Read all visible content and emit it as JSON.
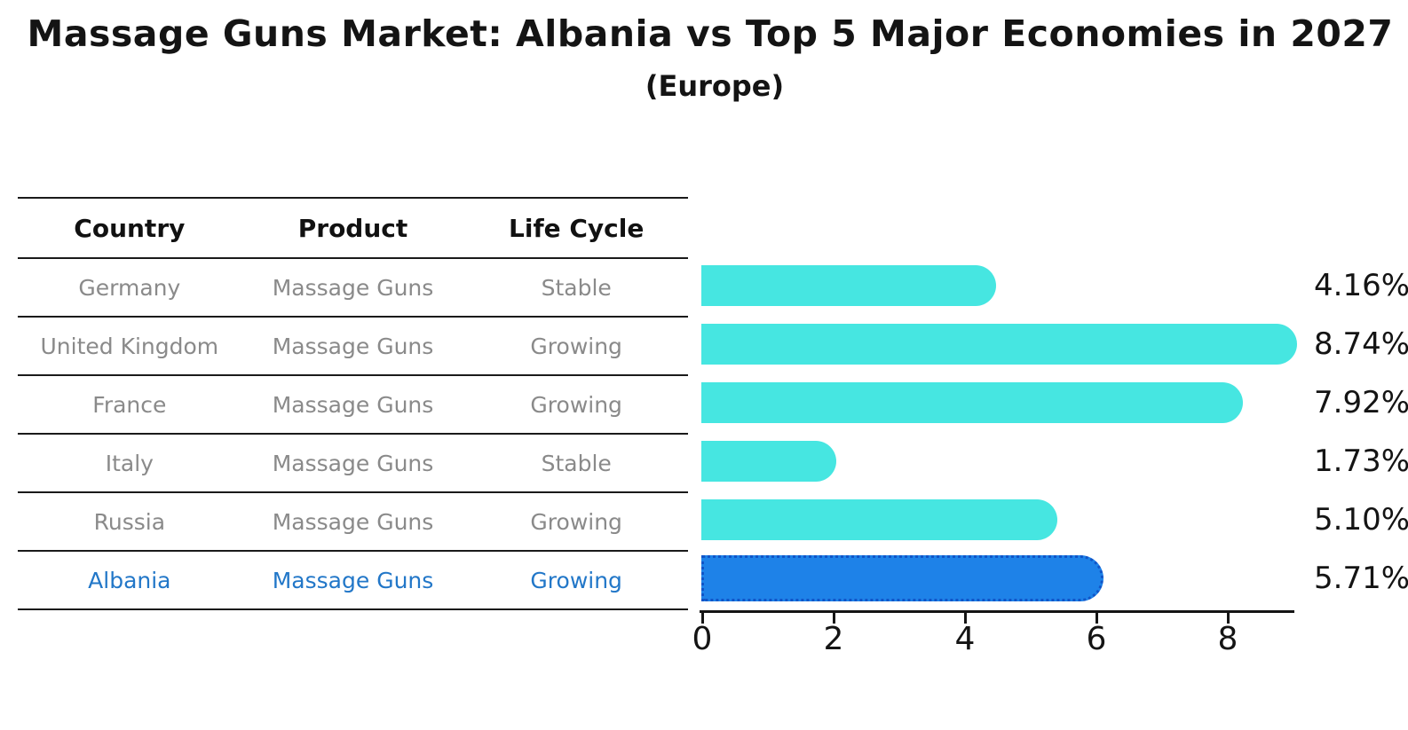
{
  "title": "Massage Guns Market: Albania vs Top 5 Major Economies in 2027",
  "subtitle": "(Europe)",
  "table": {
    "headers": [
      "Country",
      "Product",
      "Life Cycle"
    ],
    "rows": [
      {
        "country": "Germany",
        "product": "Massage Guns",
        "life_cycle": "Stable",
        "highlight": false
      },
      {
        "country": "United Kingdom",
        "product": "Massage Guns",
        "life_cycle": "Growing",
        "highlight": false
      },
      {
        "country": "France",
        "product": "Massage Guns",
        "life_cycle": "Growing",
        "highlight": false
      },
      {
        "country": "Italy",
        "product": "Massage Guns",
        "life_cycle": "Stable",
        "highlight": false
      },
      {
        "country": "Russia",
        "product": "Massage Guns",
        "life_cycle": "Growing",
        "highlight": false
      },
      {
        "country": "Albania",
        "product": "Massage Guns",
        "life_cycle": "Growing",
        "highlight": true
      }
    ]
  },
  "chart_data": {
    "type": "bar",
    "orientation": "horizontal",
    "categories": [
      "Germany",
      "United Kingdom",
      "France",
      "Italy",
      "Russia",
      "Albania"
    ],
    "values": [
      4.16,
      8.74,
      7.92,
      1.73,
      5.1,
      5.71
    ],
    "value_labels": [
      "4.16%",
      "8.74%",
      "7.92%",
      "1.73%",
      "5.10%",
      "5.71%"
    ],
    "highlight_index": 5,
    "title": "Massage Guns Market: Albania vs Top 5 Major Economies in 2027 (Europe)",
    "xlabel": "",
    "ylabel": "",
    "xlim": [
      0,
      9.1
    ],
    "xticks": [
      0,
      2,
      4,
      6,
      8
    ],
    "grid": false,
    "legend": "none",
    "bar_color": "#46e6e1",
    "highlight_bar_color": "#1e82e8",
    "highlight_border_color": "#1055c8",
    "highlight_text_color": "#2277c8"
  }
}
